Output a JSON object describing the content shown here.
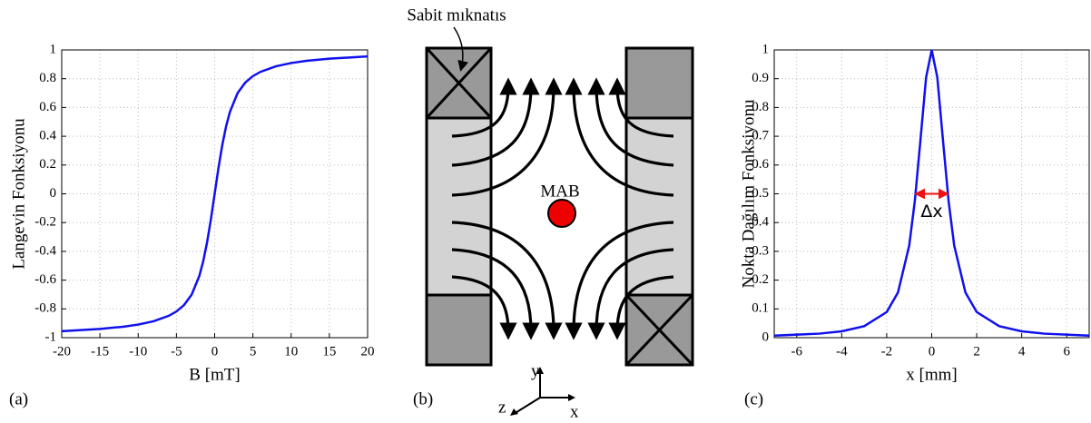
{
  "chart_data": [
    {
      "type": "line",
      "panel_label": "(a)",
      "x_label": "B [mT]",
      "y_label": "Langevin Fonksiyonu",
      "xlim": [
        -20,
        20
      ],
      "ylim": [
        -1,
        1
      ],
      "xticks": [
        -20,
        -15,
        -10,
        -5,
        0,
        5,
        10,
        15,
        20
      ],
      "yticks": [
        -1,
        -0.8,
        -0.6,
        -0.4,
        -0.2,
        0,
        0.2,
        0.4,
        0.6,
        0.8,
        1
      ],
      "grid": true,
      "x": [
        -20,
        -15,
        -12,
        -10,
        -8,
        -6,
        -5,
        -4,
        -3,
        -2,
        -1.5,
        -1,
        -0.5,
        0,
        0.5,
        1,
        1.5,
        2,
        3,
        4,
        5,
        6,
        8,
        10,
        12,
        15,
        20
      ],
      "series": [
        {
          "color": "#1010ee",
          "values": [
            -0.955,
            -0.939,
            -0.924,
            -0.909,
            -0.886,
            -0.848,
            -0.818,
            -0.773,
            -0.7,
            -0.57,
            -0.47,
            -0.34,
            -0.18,
            0,
            0.18,
            0.34,
            0.47,
            0.57,
            0.7,
            0.773,
            0.818,
            0.848,
            0.886,
            0.909,
            0.924,
            0.939,
            0.955
          ]
        }
      ]
    },
    {
      "type": "line",
      "panel_label": "(c)",
      "x_label": "x [mm]",
      "y_label": "Nokta Dağılım Fonksiyonu",
      "xlim": [
        -7,
        7
      ],
      "ylim": [
        0,
        1
      ],
      "xticks": [
        -6,
        -4,
        -2,
        0,
        2,
        4,
        6
      ],
      "yticks": [
        0,
        0.1,
        0.2,
        0.3,
        0.4,
        0.5,
        0.6,
        0.7,
        0.8,
        0.9,
        1
      ],
      "grid": true,
      "x": [
        -7,
        -5,
        -4,
        -3,
        -2,
        -1.5,
        -1,
        -0.75,
        -0.5,
        -0.25,
        0,
        0.25,
        0.5,
        0.75,
        1,
        1.5,
        2,
        3,
        4,
        5,
        7
      ],
      "series": [
        {
          "color": "#1010ee",
          "values": [
            0.007,
            0.014,
            0.022,
            0.04,
            0.089,
            0.157,
            0.32,
            0.475,
            0.687,
            0.904,
            1,
            0.904,
            0.687,
            0.475,
            0.32,
            0.157,
            0.089,
            0.04,
            0.022,
            0.014,
            0.007
          ]
        }
      ],
      "annotation": {
        "text": "Δx",
        "x": [
          -0.7,
          0.7
        ],
        "y": 0.5,
        "color": "#ee1111"
      }
    }
  ],
  "diagram": {
    "panel_label": "(b)",
    "magnet_label": "Sabit mıknatıs",
    "particle_label": "MAB",
    "axis_y": "y",
    "axis_z": "z",
    "axis_x": "x"
  }
}
